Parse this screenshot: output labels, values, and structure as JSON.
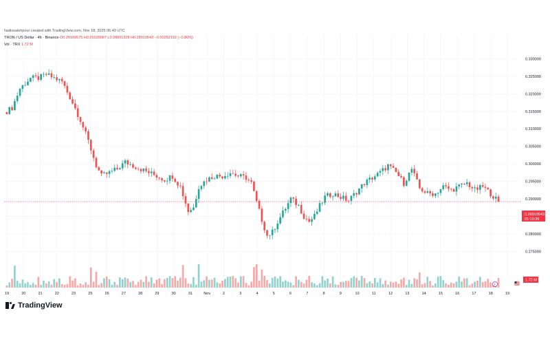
{
  "header": {
    "author_line": "hadissaiehpour created with TradingView.com, Nov 18, 2025 06:49 UTC",
    "symbol": "TRON / US Dollar · 4h · Binance",
    "ohlc": "O0.29169575 H0.29199087 L0.28801328 H0.28919543 −0.00252132 (−0.86%)",
    "vol_label": "Vol · TRX",
    "vol_value": "1.72 M"
  },
  "logo": {
    "text": "TradingView"
  },
  "price_tag": {
    "value": "0.28919543",
    "countdown": "01:10:35"
  },
  "vol_tag": {
    "value": "1.72 M"
  },
  "colors": {
    "up": "#26a69a",
    "down": "#ef5350",
    "grid": "#f0f3fa",
    "price_line": "#f23645"
  },
  "chart_data": {
    "type": "candlestick",
    "title": "TRON / US Dollar · 4h · Binance",
    "xlabel": "",
    "ylabel": "",
    "ylim": [
      0.2725,
      0.335
    ],
    "y_ticks": [
      0.33,
      0.325,
      0.32,
      0.315,
      0.31,
      0.305,
      0.3,
      0.295,
      0.29,
      0.285,
      0.28,
      0.275
    ],
    "y_tick_labels": [
      "0.330000",
      "0.325000",
      "0.320000",
      "0.315000",
      "0.310000",
      "0.305000",
      "0.300000",
      "0.295000",
      "0.290000",
      "0.285000",
      "0.280000",
      "0.275000"
    ],
    "x_tick_labels": [
      "19",
      "20",
      "21",
      "22",
      "23",
      "25",
      "26",
      "27",
      "28",
      "29",
      "30",
      "31",
      "Nov",
      "2",
      "3",
      "4",
      "5",
      "6",
      "7",
      "8",
      "9",
      "10",
      "11",
      "12",
      "13",
      "14",
      "15",
      "16",
      "17",
      "18",
      "19"
    ],
    "last_price": 0.28919543,
    "close_anchors": [
      [
        0,
        0.315
      ],
      [
        2,
        0.316
      ],
      [
        5,
        0.3215
      ],
      [
        9,
        0.3245
      ],
      [
        12,
        0.3245
      ],
      [
        15,
        0.3255
      ],
      [
        18,
        0.3245
      ],
      [
        21,
        0.3235
      ],
      [
        23,
        0.3205
      ],
      [
        25,
        0.3175
      ],
      [
        28,
        0.3125
      ],
      [
        31,
        0.3065
      ],
      [
        34,
        0.2995
      ],
      [
        36,
        0.2965
      ],
      [
        39,
        0.2975
      ],
      [
        42,
        0.2985
      ],
      [
        45,
        0.3005
      ],
      [
        48,
        0.2995
      ],
      [
        51,
        0.2985
      ],
      [
        54,
        0.2975
      ],
      [
        57,
        0.2965
      ],
      [
        60,
        0.2955
      ],
      [
        63,
        0.2965
      ],
      [
        66,
        0.2935
      ],
      [
        69,
        0.2865
      ],
      [
        71,
        0.2875
      ],
      [
        73,
        0.2935
      ],
      [
        76,
        0.2955
      ],
      [
        79,
        0.2965
      ],
      [
        82,
        0.2965
      ],
      [
        85,
        0.2975
      ],
      [
        88,
        0.2965
      ],
      [
        91,
        0.296
      ],
      [
        93,
        0.2945
      ],
      [
        95,
        0.289
      ],
      [
        97,
        0.284
      ],
      [
        99,
        0.2795
      ],
      [
        101,
        0.2805
      ],
      [
        103,
        0.2835
      ],
      [
        105,
        0.286
      ],
      [
        108,
        0.29
      ],
      [
        111,
        0.288
      ],
      [
        113,
        0.285
      ],
      [
        115,
        0.2835
      ],
      [
        117,
        0.285
      ],
      [
        119,
        0.288
      ],
      [
        121,
        0.2905
      ],
      [
        124,
        0.2915
      ],
      [
        127,
        0.2905
      ],
      [
        130,
        0.2895
      ],
      [
        133,
        0.292
      ],
      [
        136,
        0.2945
      ],
      [
        139,
        0.296
      ],
      [
        142,
        0.2975
      ],
      [
        145,
        0.2995
      ],
      [
        148,
        0.2975
      ],
      [
        151,
        0.2945
      ],
      [
        154,
        0.2985
      ],
      [
        157,
        0.293
      ],
      [
        160,
        0.2915
      ],
      [
        163,
        0.2915
      ],
      [
        166,
        0.2935
      ],
      [
        169,
        0.2925
      ],
      [
        172,
        0.2935
      ],
      [
        175,
        0.2945
      ],
      [
        178,
        0.2925
      ],
      [
        181,
        0.2935
      ],
      [
        184,
        0.2915
      ],
      [
        187,
        0.28919543
      ]
    ],
    "volume_axis_label": "Vol · TRX"
  }
}
